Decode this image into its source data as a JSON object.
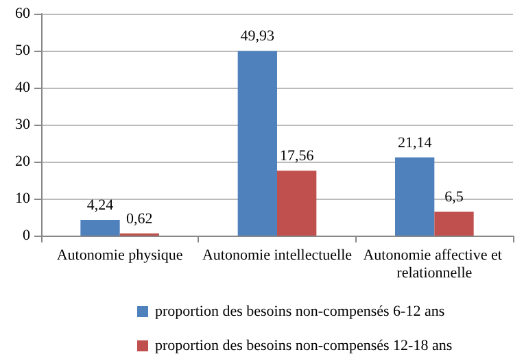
{
  "chart_data": {
    "type": "bar",
    "categories": [
      "Autonomie physique",
      "Autonomie intellectuelle",
      "Autonomie affective et relationnelle"
    ],
    "series": [
      {
        "name": "proportion des besoins non-compensés 6-12 ans",
        "color": "#4f81bd",
        "values": [
          4.24,
          49.93,
          21.14
        ],
        "value_labels": [
          "4,24",
          "49,93",
          "21,14"
        ]
      },
      {
        "name": "proportion des besoins non-compensés 12-18 ans",
        "color": "#c0504d",
        "values": [
          0.62,
          17.56,
          6.5
        ],
        "value_labels": [
          "0,62",
          "17,56",
          "6,5"
        ]
      }
    ],
    "ylim": [
      0,
      60
    ],
    "yticks": [
      0,
      10,
      20,
      30,
      40,
      50,
      60
    ],
    "grid": "y",
    "legend": "bottom"
  }
}
